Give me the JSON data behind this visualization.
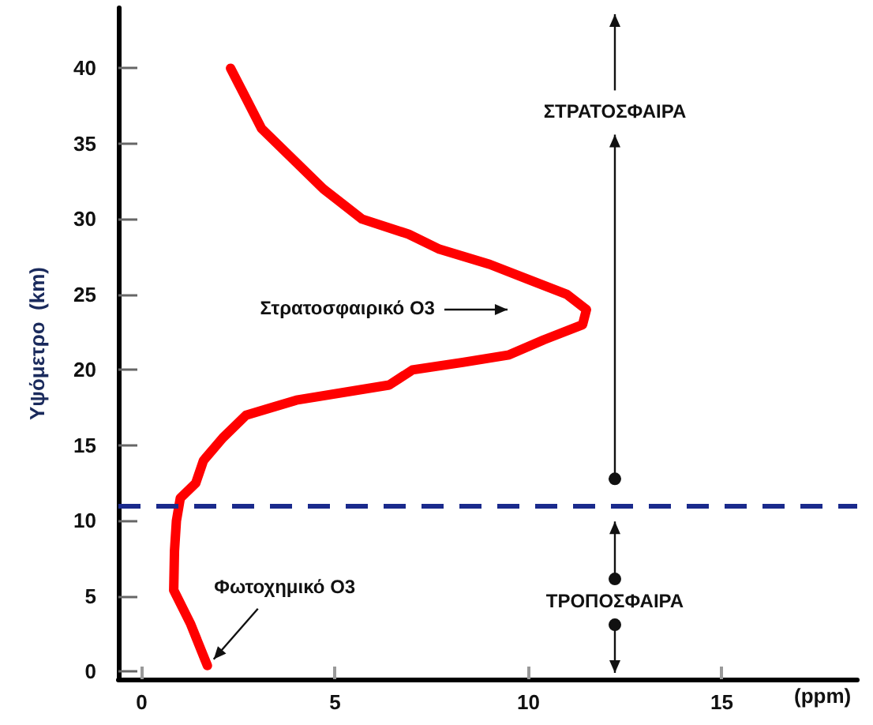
{
  "chart_data": {
    "type": "line",
    "xlabel": "(ppm)",
    "ylabel": "Υψόμετρο  (km)",
    "x": [
      1.7,
      1.26,
      0.83,
      0.85,
      0.9,
      1.0,
      1.4,
      1.6,
      2.1,
      2.7,
      4.0,
      6.4,
      7.0,
      8.3,
      9.5,
      10.4,
      11.4,
      11.5,
      11.0,
      10.0,
      9.0,
      7.7,
      6.9,
      5.7,
      4.7,
      3.9,
      3.1,
      2.7,
      2.3
    ],
    "series": [
      {
        "color": "#ff0000",
        "values": [
          0.4,
          3.2,
          5.4,
          8,
          10,
          11.5,
          12.5,
          14,
          15.5,
          17,
          18,
          19,
          20,
          20.5,
          21,
          22,
          23,
          24,
          25,
          26,
          27,
          28,
          29,
          30,
          32,
          34,
          36,
          38,
          40
        ]
      }
    ],
    "xlim": [
      -0.6,
      18.5
    ],
    "ylim": [
      -0.5,
      44
    ],
    "xticks": [
      0,
      5,
      10,
      15
    ],
    "yticks": [
      0,
      5,
      10,
      15,
      20,
      25,
      30,
      35,
      40
    ],
    "ref_lines": [
      {
        "axis": "y",
        "value": 11,
        "color": "#1a2a8c",
        "line_style": "dashed"
      }
    ],
    "annotations": [
      "Στρατοσφαιρικό Ο3",
      {
        "text": "Φωτοχημικό Ο3",
        "x": 1.7,
        "y": 0.4
      },
      "ΣΤΡΑΤΟΣΦΑΙΡΑ",
      "ΤΡΟΠΟΣΦΑΙΡΑ"
    ],
    "grid": false,
    "marker": "none",
    "line_style": "solid"
  }
}
